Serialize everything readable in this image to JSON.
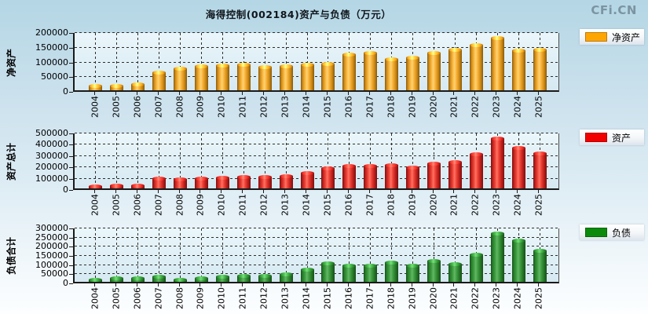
{
  "header": {
    "title": "海得控制(002184)资产与负债（万元）",
    "logo": "CFi.CN"
  },
  "categories": [
    "2004",
    "2005",
    "2006",
    "2007",
    "2008",
    "2009",
    "2010",
    "2011",
    "2012",
    "2013",
    "2014",
    "2015",
    "2016",
    "2017",
    "2018",
    "2019",
    "2020",
    "2021",
    "2022",
    "2023",
    "2024",
    "2025"
  ],
  "chart_data": [
    {
      "type": "bar",
      "ylabel": "净资产",
      "legend": "净资产",
      "legend_position": "right",
      "grid": true,
      "color": "#FFA500",
      "ylim": [
        0,
        200000
      ],
      "ytick_step": 50000,
      "yticks": [
        0,
        50000,
        100000,
        150000,
        200000
      ],
      "values": [
        15000,
        17000,
        21000,
        62000,
        76000,
        82000,
        85000,
        88000,
        80000,
        84000,
        87000,
        91000,
        122000,
        127000,
        107000,
        113000,
        127000,
        138000,
        154000,
        179000,
        137000,
        140000
      ]
    },
    {
      "type": "bar",
      "ylabel": "资产总计",
      "legend": "资产",
      "legend_position": "right",
      "grid": true,
      "color": "#F20000",
      "ylim": [
        0,
        500000
      ],
      "ytick_step": 100000,
      "yticks": [
        0,
        100000,
        200000,
        300000,
        400000,
        500000
      ],
      "values": [
        22000,
        27000,
        30000,
        87000,
        84000,
        93000,
        97000,
        101000,
        103000,
        112000,
        140000,
        180000,
        204000,
        202000,
        205000,
        185000,
        220000,
        237000,
        305000,
        444000,
        364000,
        313000
      ]
    },
    {
      "type": "bar",
      "ylabel": "负债合计",
      "legend": "负债",
      "legend_position": "right",
      "grid": true,
      "color": "#0C8A0C",
      "ylim": [
        0,
        300000
      ],
      "ytick_step": 50000,
      "yticks": [
        0,
        50000,
        100000,
        150000,
        200000,
        250000,
        300000
      ],
      "values": [
        13000,
        21000,
        20000,
        28000,
        14000,
        21000,
        28000,
        34000,
        34000,
        41000,
        68000,
        101000,
        90000,
        91000,
        107000,
        90000,
        114000,
        100000,
        150000,
        264000,
        226000,
        173000
      ]
    }
  ]
}
